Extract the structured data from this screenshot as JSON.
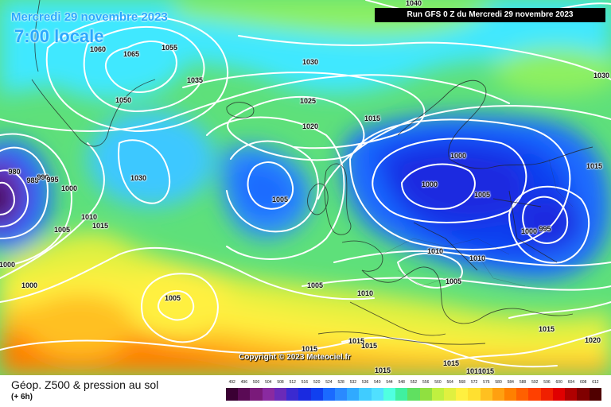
{
  "title": {
    "date": "Mercredi 29 novembre 2023",
    "time": "7:00 locale",
    "run": "Run GFS 0 Z du Mercredi 29 novembre 2023"
  },
  "copyright": "Copyright © 2023 Meteociel.fr",
  "footer": {
    "title": "Géop. Z500 & pression au sol",
    "subtitle": "(+ 6h)"
  },
  "isobar_labels": [
    {
      "id": "1040-top",
      "text": "1040"
    },
    {
      "id": "1030-top",
      "text": "1030"
    },
    {
      "id": "1060",
      "text": "1060"
    },
    {
      "id": "1065",
      "text": "1065"
    },
    {
      "id": "1055",
      "text": "1055"
    },
    {
      "id": "1050",
      "text": "1050"
    },
    {
      "id": "1035",
      "text": "1035"
    },
    {
      "id": "1030",
      "text": "1030"
    },
    {
      "id": "1025",
      "text": "1025"
    },
    {
      "id": "1020",
      "text": "1020"
    },
    {
      "id": "1015-n",
      "text": "1015"
    },
    {
      "id": "1000-a",
      "text": "1000"
    },
    {
      "id": "1000-b",
      "text": "1000"
    },
    {
      "id": "1005-e",
      "text": "1005"
    },
    {
      "id": "1015-e",
      "text": "1015"
    },
    {
      "id": "1000-95",
      "text": "1000"
    },
    {
      "id": "995",
      "text": "995"
    },
    {
      "id": "1010-c",
      "text": "1010"
    },
    {
      "id": "1010-d",
      "text": "1010"
    },
    {
      "id": "1005-f",
      "text": "1005"
    },
    {
      "id": "1005-w",
      "text": "1005"
    },
    {
      "id": "1030-w",
      "text": "1030"
    },
    {
      "id": "980",
      "text": "980"
    },
    {
      "id": "985",
      "text": "985"
    },
    {
      "id": "990",
      "text": "990"
    },
    {
      "id": "995-w",
      "text": "995"
    },
    {
      "id": "1000-w1",
      "text": "1000"
    },
    {
      "id": "1010-w",
      "text": "1010"
    },
    {
      "id": "1015-w",
      "text": "1015"
    },
    {
      "id": "1005-w2",
      "text": "1005"
    },
    {
      "id": "1000-w2",
      "text": "1000"
    },
    {
      "id": "1000-w3",
      "text": "1000"
    },
    {
      "id": "1005-s",
      "text": "1005"
    },
    {
      "id": "1005-m",
      "text": "1005"
    },
    {
      "id": "1010-m",
      "text": "1010"
    },
    {
      "id": "1015-m1",
      "text": "1015"
    },
    {
      "id": "1015-m2",
      "text": "1015"
    },
    {
      "id": "1015-m3",
      "text": "1015"
    },
    {
      "id": "1015-m4",
      "text": "1015"
    },
    {
      "id": "1015-m5",
      "text": "1015"
    },
    {
      "id": "1010-m2",
      "text": "1010"
    },
    {
      "id": "1015-m6",
      "text": "1015"
    },
    {
      "id": "1015-se",
      "text": "1015"
    },
    {
      "id": "1020-se",
      "text": "1020"
    }
  ],
  "legend": {
    "values": [
      "492",
      "496",
      "500",
      "504",
      "508",
      "512",
      "516",
      "520",
      "524",
      "528",
      "532",
      "536",
      "540",
      "544",
      "548",
      "552",
      "556",
      "560",
      "564",
      "568",
      "572",
      "576",
      "580",
      "584",
      "588",
      "592",
      "596",
      "600",
      "604",
      "608",
      "612"
    ],
    "colors": [
      "#3a0033",
      "#5a0a55",
      "#7a1a7a",
      "#8a2aa0",
      "#6a2ab8",
      "#3a2ad0",
      "#1a2ae0",
      "#1040f0",
      "#1a6aff",
      "#2a8aff",
      "#30aaff",
      "#40ccff",
      "#50e0ff",
      "#50ffe0",
      "#40f0a0",
      "#60e060",
      "#90e040",
      "#c0f040",
      "#e0f040",
      "#fff040",
      "#ffe030",
      "#ffc020",
      "#ffa010",
      "#ff8000",
      "#ff6000",
      "#ff4000",
      "#f02000",
      "#e00000",
      "#b00000",
      "#800000",
      "#500000"
    ]
  }
}
